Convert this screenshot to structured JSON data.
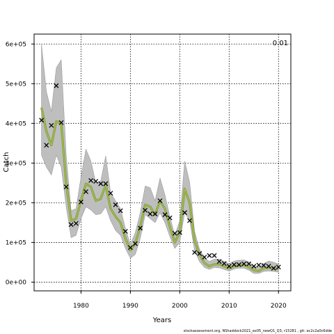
{
  "chart_data": {
    "type": "line",
    "xlabel": "Years",
    "ylabel": "Catch",
    "corner_label": "0.01",
    "xlim": [
      1970.5,
      2022.5
    ],
    "ylim": [
      -22000,
      625000
    ],
    "x_ticks": [
      1980,
      1990,
      2000,
      2010,
      2020
    ],
    "x_tick_labels": [
      "1980",
      "1990",
      "2000",
      "2010",
      "2020"
    ],
    "y_ticks": [
      0,
      100000,
      200000,
      300000,
      400000,
      500000,
      600000
    ],
    "y_tick_labels": [
      "0e+00",
      "1e+05",
      "2e+05",
      "3e+05",
      "4e+05",
      "5e+05",
      "6e+05"
    ],
    "grid": true,
    "years": [
      1972,
      1973,
      1974,
      1975,
      1976,
      1977,
      1978,
      1979,
      1980,
      1981,
      1982,
      1983,
      1984,
      1985,
      1986,
      1987,
      1988,
      1989,
      1990,
      1991,
      1992,
      1993,
      1994,
      1995,
      1996,
      1997,
      1998,
      1999,
      2000,
      2001,
      2002,
      2003,
      2004,
      2005,
      2006,
      2007,
      2008,
      2009,
      2010,
      2011,
      2012,
      2013,
      2014,
      2015,
      2016,
      2017,
      2018,
      2019,
      2020
    ],
    "observed": [
      408000,
      345000,
      395000,
      495000,
      402000,
      240000,
      145000,
      148000,
      202000,
      228000,
      256000,
      254000,
      248000,
      248000,
      224000,
      195000,
      180000,
      128000,
      87000,
      97000,
      136000,
      181000,
      172000,
      172000,
      205000,
      170000,
      162000,
      123000,
      125000,
      175000,
      155000,
      75000,
      72000,
      63000,
      67000,
      67000,
      52000,
      47000,
      40000,
      44000,
      44000,
      46000,
      46000,
      40000,
      43000,
      42000,
      40000,
      35000,
      38000
    ],
    "estimate": [
      440000,
      380000,
      345000,
      405000,
      400000,
      250000,
      155000,
      160000,
      205000,
      248000,
      240000,
      205000,
      210000,
      245000,
      185000,
      165000,
      150000,
      110000,
      80000,
      98000,
      140000,
      195000,
      190000,
      170000,
      205000,
      185000,
      140000,
      100000,
      125000,
      235000,
      200000,
      105000,
      70000,
      48000,
      40000,
      45000,
      45000,
      40000,
      35000,
      40000,
      42000,
      43000,
      38000,
      30000,
      28000,
      35000,
      37000,
      35000,
      33000
    ],
    "lower": [
      320000,
      290000,
      270000,
      320000,
      290000,
      190000,
      112000,
      118000,
      160000,
      190000,
      182000,
      170000,
      172000,
      190000,
      155000,
      130000,
      118000,
      85000,
      60000,
      70000,
      110000,
      170000,
      160000,
      150000,
      175000,
      150000,
      115000,
      85000,
      100000,
      175000,
      155000,
      80000,
      52000,
      37000,
      32000,
      37000,
      36000,
      32000,
      28000,
      33000,
      35000,
      35000,
      30000,
      22000,
      22000,
      27000,
      28000,
      27000,
      25000
    ],
    "upper": [
      600000,
      480000,
      430000,
      540000,
      560000,
      320000,
      180000,
      185000,
      265000,
      335000,
      305000,
      250000,
      255000,
      318000,
      225000,
      205000,
      185000,
      135000,
      95000,
      125000,
      175000,
      242000,
      238000,
      205000,
      262000,
      220000,
      165000,
      118000,
      155000,
      305000,
      252000,
      128000,
      83000,
      60000,
      52000,
      58000,
      58000,
      52000,
      46000,
      53000,
      55000,
      56000,
      51000,
      40000,
      38000,
      47000,
      53000,
      50000,
      45000
    ]
  },
  "colors": {
    "band": "#bebebe",
    "band_edge": "#9a9a9a",
    "estimate_line": "#7ea23a",
    "estimate_inner": "#b9c25a",
    "marker": "#000000",
    "grid": "#000000"
  },
  "footer_text": "stockassessment.org, NShaddock2021_ex05_newQ1_Q3, r15281 , git: ec2c2a0c6dde"
}
